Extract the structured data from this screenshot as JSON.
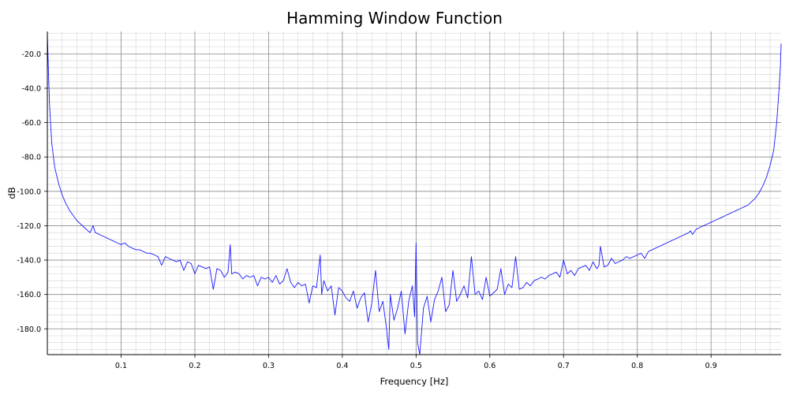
{
  "chart_data": {
    "type": "line",
    "title": "Hamming Window Function",
    "xlabel": "Frequency [Hz]",
    "ylabel": "dB",
    "xlim": [
      0.0,
      0.995
    ],
    "ylim": [
      -195.0,
      -7.0
    ],
    "grid": "major and minor",
    "x_ticks": [
      0.1,
      0.2,
      0.3,
      0.4,
      0.5,
      0.6,
      0.7,
      0.8,
      0.9
    ],
    "x_tick_labels": [
      "0.1",
      "0.2",
      "0.3",
      "0.4",
      "0.5",
      "0.6",
      "0.7",
      "0.8",
      "0.9"
    ],
    "y_ticks": [
      -20.0,
      -40.0,
      -60.0,
      -80.0,
      -100.0,
      -120.0,
      -140.0,
      -160.0,
      -180.0
    ],
    "y_tick_labels": [
      "-20.0",
      "-40.0",
      "-60.0",
      "-80.0",
      "-100.0",
      "-120.0",
      "-140.0",
      "-160.0",
      "-180.0"
    ],
    "series": [
      {
        "color": "#1a1aff",
        "x": [
          0.0,
          0.0015,
          0.003,
          0.006,
          0.01,
          0.015,
          0.02,
          0.025,
          0.03,
          0.035,
          0.04,
          0.045,
          0.05,
          0.055,
          0.058,
          0.062,
          0.065,
          0.07,
          0.075,
          0.08,
          0.085,
          0.09,
          0.095,
          0.1,
          0.105,
          0.11,
          0.115,
          0.12,
          0.125,
          0.13,
          0.135,
          0.14,
          0.145,
          0.15,
          0.155,
          0.16,
          0.165,
          0.17,
          0.175,
          0.18,
          0.185,
          0.19,
          0.195,
          0.2,
          0.205,
          0.21,
          0.215,
          0.22,
          0.225,
          0.23,
          0.235,
          0.24,
          0.245,
          0.248,
          0.25,
          0.255,
          0.26,
          0.265,
          0.27,
          0.275,
          0.28,
          0.285,
          0.29,
          0.295,
          0.3,
          0.305,
          0.31,
          0.315,
          0.32,
          0.325,
          0.33,
          0.335,
          0.34,
          0.345,
          0.35,
          0.355,
          0.36,
          0.365,
          0.37,
          0.372,
          0.375,
          0.38,
          0.385,
          0.39,
          0.395,
          0.4,
          0.405,
          0.41,
          0.415,
          0.42,
          0.425,
          0.43,
          0.435,
          0.44,
          0.445,
          0.45,
          0.455,
          0.46,
          0.463,
          0.465,
          0.47,
          0.475,
          0.48,
          0.485,
          0.49,
          0.495,
          0.498,
          0.5,
          0.502,
          0.505,
          0.51,
          0.515,
          0.52,
          0.525,
          0.53,
          0.535,
          0.54,
          0.545,
          0.55,
          0.555,
          0.56,
          0.565,
          0.57,
          0.575,
          0.58,
          0.585,
          0.59,
          0.595,
          0.6,
          0.605,
          0.61,
          0.615,
          0.62,
          0.625,
          0.63,
          0.635,
          0.64,
          0.645,
          0.65,
          0.655,
          0.66,
          0.665,
          0.67,
          0.675,
          0.68,
          0.685,
          0.69,
          0.695,
          0.7,
          0.705,
          0.71,
          0.715,
          0.72,
          0.725,
          0.73,
          0.735,
          0.74,
          0.745,
          0.748,
          0.75,
          0.755,
          0.76,
          0.765,
          0.77,
          0.775,
          0.78,
          0.785,
          0.79,
          0.795,
          0.8,
          0.805,
          0.81,
          0.815,
          0.82,
          0.825,
          0.83,
          0.835,
          0.84,
          0.845,
          0.85,
          0.855,
          0.86,
          0.865,
          0.87,
          0.872,
          0.875,
          0.88,
          0.885,
          0.89,
          0.895,
          0.9,
          0.905,
          0.91,
          0.915,
          0.92,
          0.925,
          0.93,
          0.935,
          0.94,
          0.945,
          0.95,
          0.955,
          0.96,
          0.965,
          0.97,
          0.975,
          0.98,
          0.985,
          0.989,
          0.992,
          0.994,
          0.995
        ],
        "y": [
          -8.0,
          -30.0,
          -50.0,
          -72.0,
          -86.0,
          -95.0,
          -102.0,
          -107.0,
          -111.0,
          -114.0,
          -117.0,
          -119.0,
          -121.0,
          -123.0,
          -124.0,
          -120.0,
          -124.0,
          -125.0,
          -126.0,
          -127.0,
          -128.0,
          -129.0,
          -130.0,
          -131.0,
          -130.0,
          -132.0,
          -133.0,
          -134.0,
          -134.0,
          -135.0,
          -136.0,
          -136.0,
          -137.0,
          -138.0,
          -143.0,
          -138.0,
          -139.0,
          -140.0,
          -141.0,
          -140.0,
          -146.0,
          -141.0,
          -142.0,
          -148.0,
          -143.0,
          -144.0,
          -145.0,
          -144.0,
          -157.0,
          -145.0,
          -146.0,
          -150.0,
          -147.0,
          -131.0,
          -148.0,
          -147.0,
          -148.0,
          -151.0,
          -149.0,
          -150.0,
          -149.0,
          -155.0,
          -150.0,
          -151.0,
          -150.0,
          -153.0,
          -149.0,
          -154.0,
          -152.0,
          -145.0,
          -153.0,
          -156.0,
          -153.0,
          -155.0,
          -154.0,
          -165.0,
          -155.0,
          -156.0,
          -137.0,
          -160.0,
          -152.0,
          -158.0,
          -155.0,
          -172.0,
          -156.0,
          -158.0,
          -162.0,
          -164.0,
          -158.0,
          -168.0,
          -162.0,
          -159.0,
          -176.0,
          -165.0,
          -146.0,
          -170.0,
          -164.0,
          -180.0,
          -192.0,
          -160.0,
          -175.0,
          -168.0,
          -158.0,
          -183.0,
          -164.0,
          -155.0,
          -173.0,
          -130.0,
          -188.0,
          -195.0,
          -168.0,
          -161.0,
          -176.0,
          -163.0,
          -158.0,
          -150.0,
          -170.0,
          -166.0,
          -146.0,
          -164.0,
          -160.0,
          -155.0,
          -162.0,
          -138.0,
          -160.0,
          -158.0,
          -163.0,
          -150.0,
          -161.0,
          -159.0,
          -157.0,
          -145.0,
          -160.0,
          -154.0,
          -156.0,
          -138.0,
          -157.0,
          -156.0,
          -153.0,
          -155.0,
          -152.0,
          -151.0,
          -150.0,
          -151.0,
          -149.0,
          -148.0,
          -147.0,
          -150.0,
          -140.0,
          -148.0,
          -146.0,
          -149.0,
          -145.0,
          -144.0,
          -143.0,
          -146.0,
          -141.0,
          -145.0,
          -143.0,
          -132.0,
          -144.0,
          -143.0,
          -139.0,
          -142.0,
          -141.0,
          -140.0,
          -138.0,
          -139.0,
          -138.0,
          -137.0,
          -136.0,
          -139.0,
          -135.0,
          -134.0,
          -133.0,
          -132.0,
          -131.0,
          -130.0,
          -129.0,
          -128.0,
          -127.0,
          -126.0,
          -125.0,
          -124.0,
          -123.0,
          -125.0,
          -122.0,
          -121.0,
          -120.0,
          -119.0,
          -118.0,
          -117.0,
          -116.0,
          -115.0,
          -114.0,
          -113.0,
          -112.0,
          -111.0,
          -110.0,
          -109.0,
          -108.0,
          -106.0,
          -104.0,
          -101.0,
          -97.0,
          -92.0,
          -85.0,
          -76.0,
          -60.0,
          -42.0,
          -28.0,
          -14.0
        ]
      }
    ]
  }
}
